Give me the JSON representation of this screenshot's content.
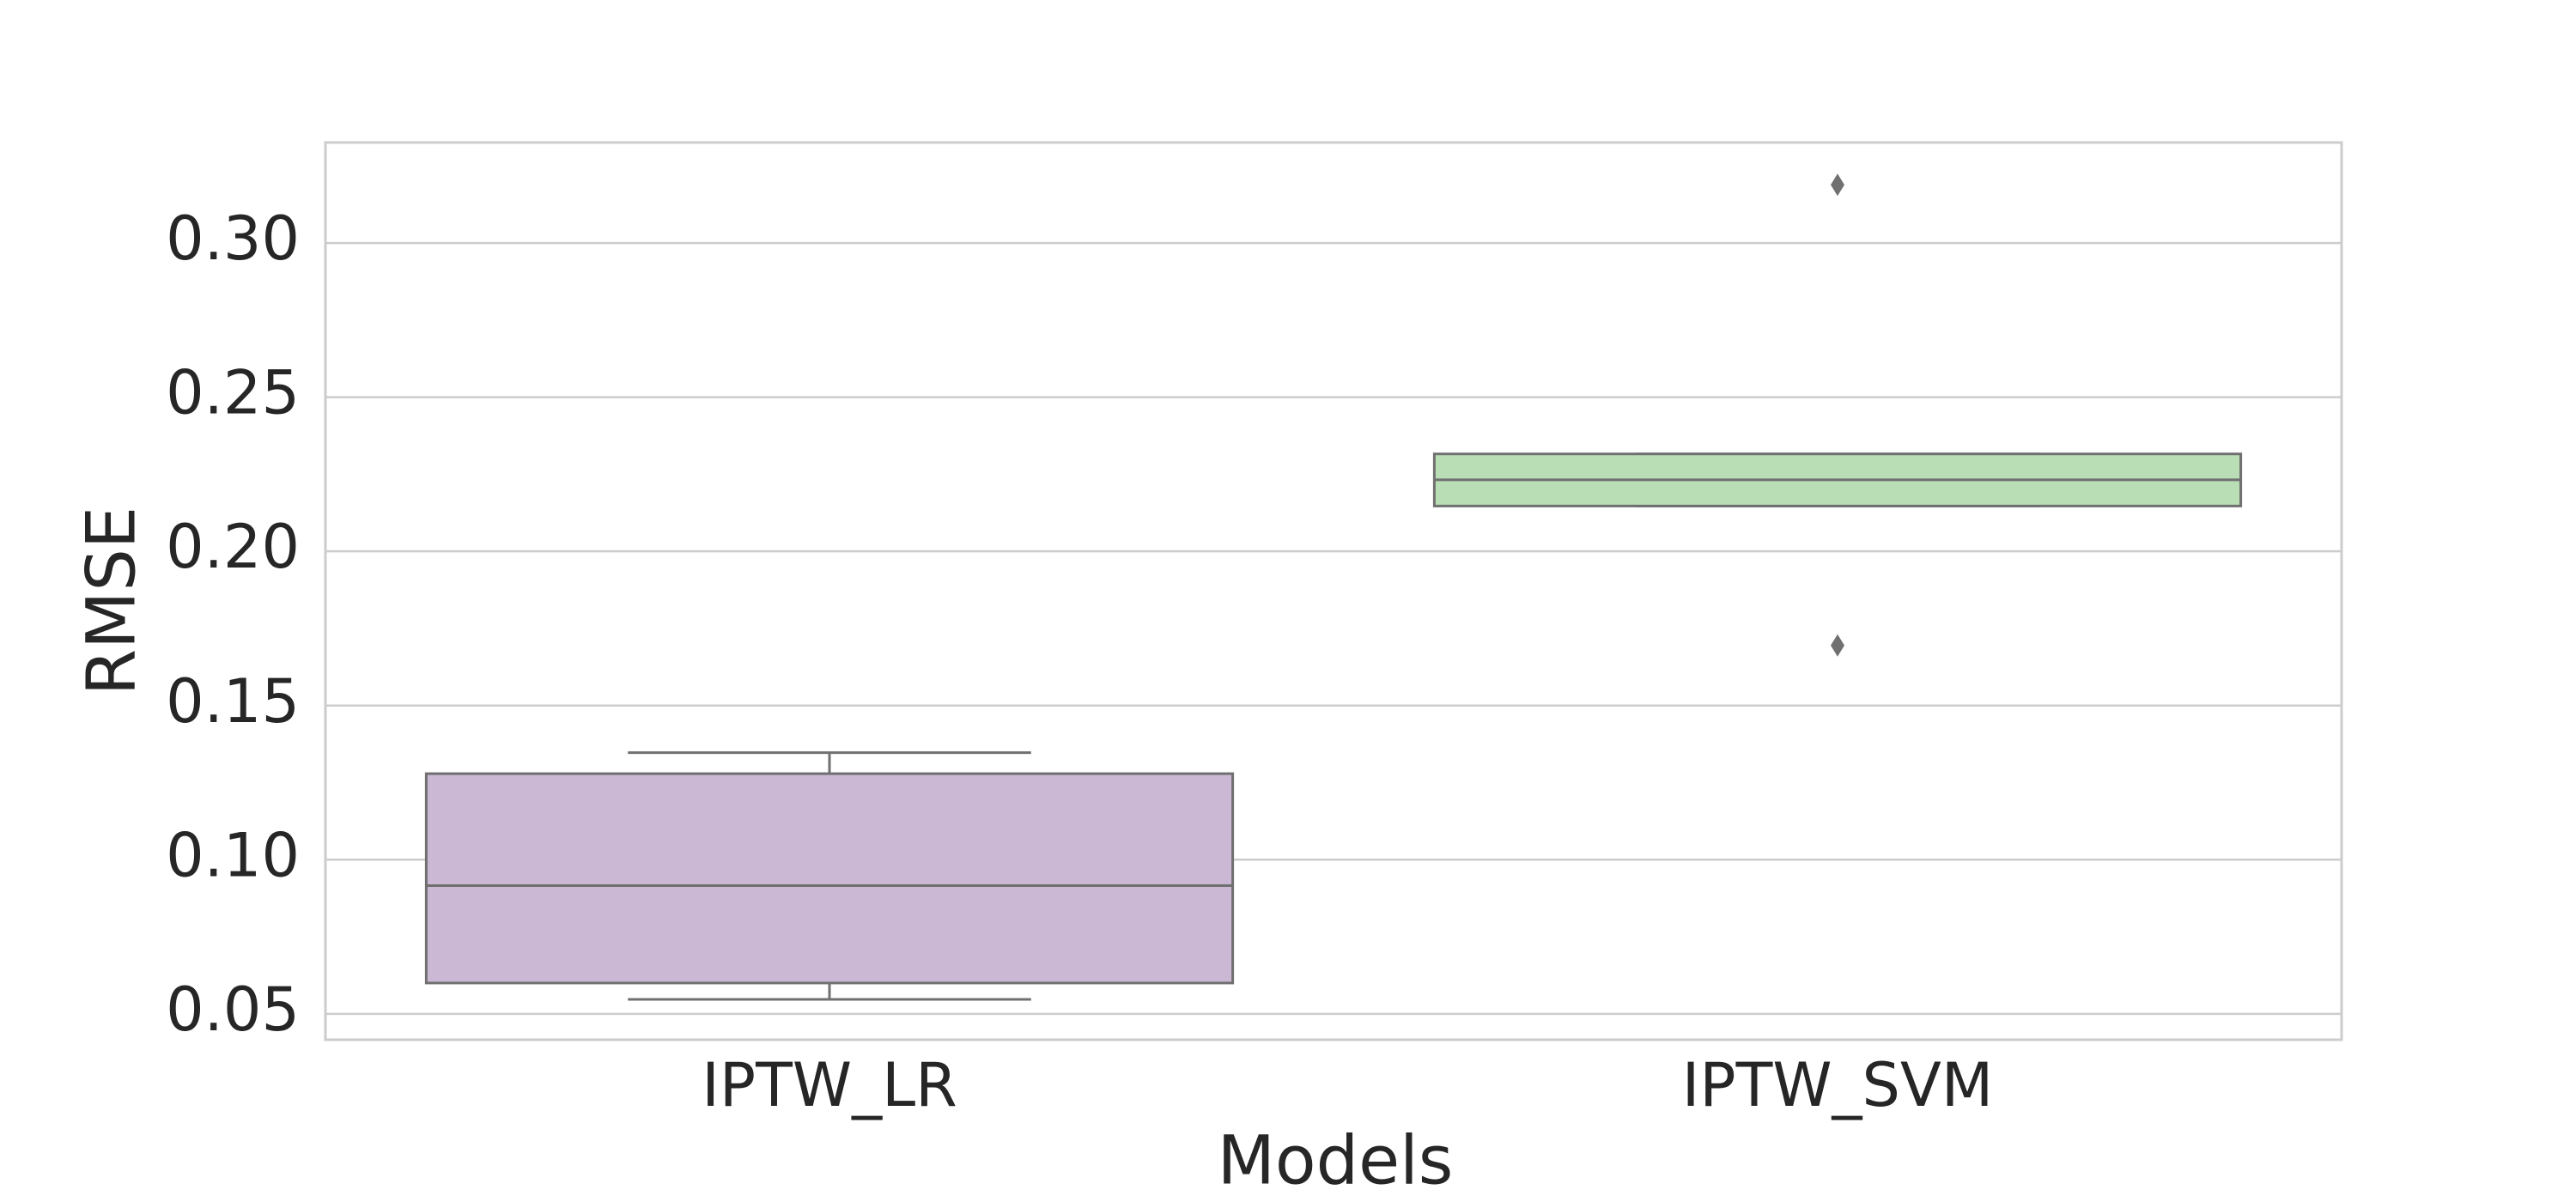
{
  "chart_data": {
    "type": "box",
    "xlabel": "Models",
    "ylabel": "RMSE",
    "categories": [
      "IPTW_LR",
      "IPTW_SVM"
    ],
    "colors": [
      "#cbb8d5",
      "#b9ddb5"
    ],
    "boxes": [
      {
        "whislo": 0.0547,
        "q1": 0.06,
        "med": 0.0916,
        "q3": 0.1279,
        "whishi": 0.1347,
        "fliers": []
      },
      {
        "whislo": 0.2147,
        "q1": 0.2147,
        "med": 0.2232,
        "q3": 0.2316,
        "whishi": 0.2316,
        "fliers": [
          0.3189,
          0.1695
        ]
      }
    ],
    "ylim": [
      0.0416,
      0.3326
    ],
    "yticks": [
      0.05,
      {
        "value": 0.1,
        "label": "0.10"
      },
      0.15,
      {
        "value": 0.2,
        "label": "0.20"
      },
      0.25,
      {
        "value": 0.3,
        "label": "0.30"
      }
    ],
    "grid": true
  }
}
